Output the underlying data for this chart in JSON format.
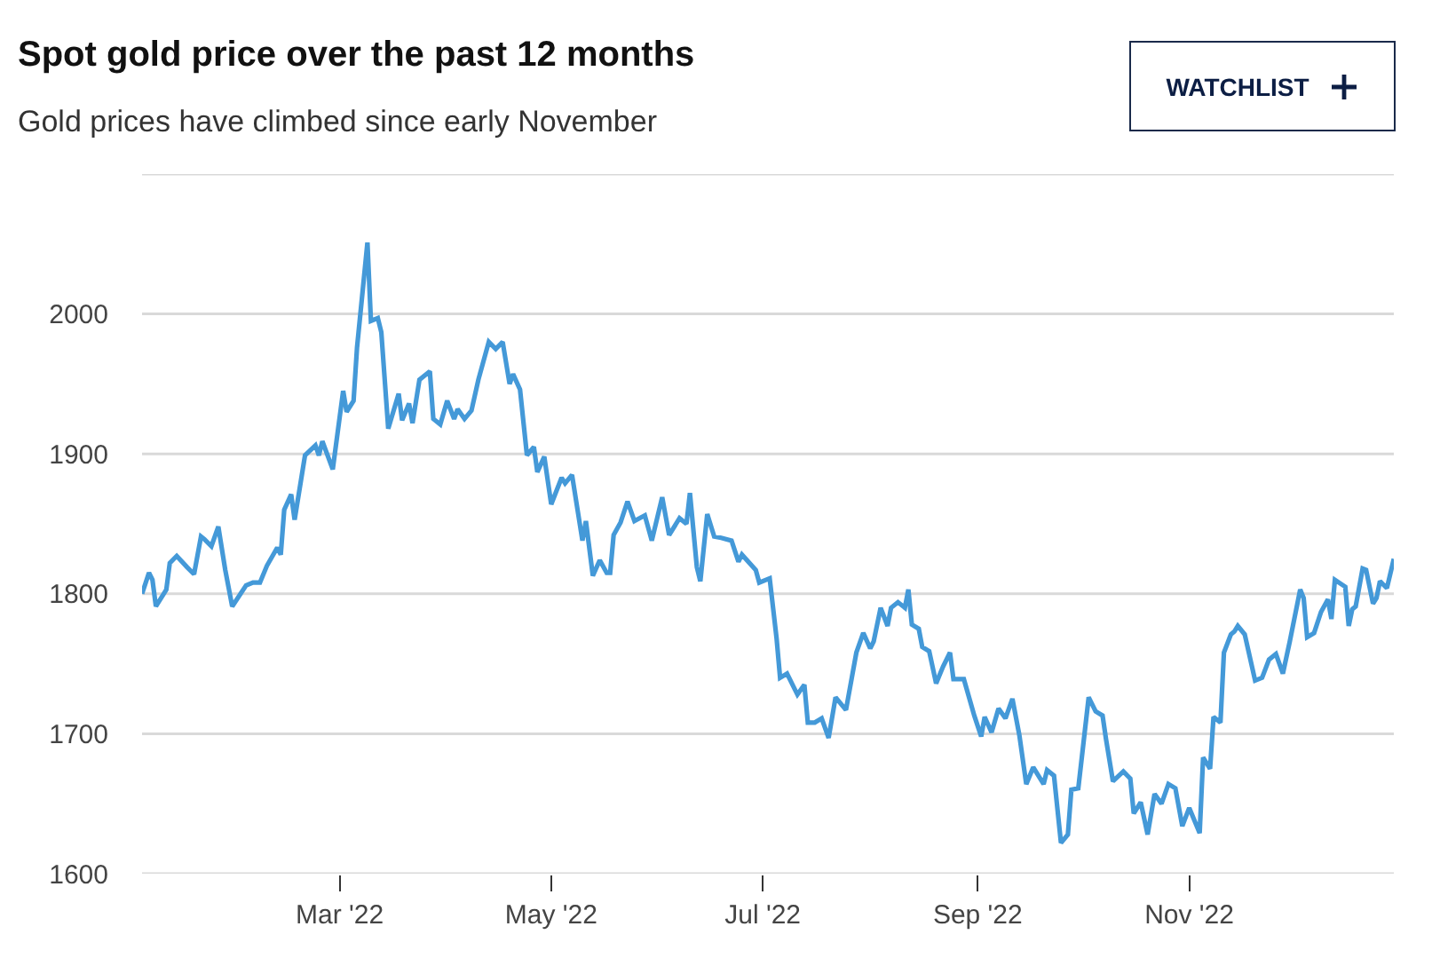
{
  "chart_data": {
    "type": "line",
    "title": "Spot gold price over the past 12 months",
    "subtitle": "Gold prices have climbed since early November",
    "annotations": [
      "WATCHLIST"
    ],
    "x": [
      "2022-01-03",
      "2022-01-05",
      "2022-01-06",
      "2022-01-07",
      "2022-01-10",
      "2022-01-11",
      "2022-01-13",
      "2022-01-16",
      "2022-01-18",
      "2022-01-20",
      "2022-01-21",
      "2022-01-23",
      "2022-01-25",
      "2022-01-27",
      "2022-01-29",
      "2022-02-02",
      "2022-02-04",
      "2022-02-06",
      "2022-02-08",
      "2022-02-11",
      "2022-02-12",
      "2022-02-13",
      "2022-02-15",
      "2022-02-16",
      "2022-02-19",
      "2022-02-22",
      "2022-02-23",
      "2022-02-24",
      "2022-02-27",
      "2022-03-02",
      "2022-03-03",
      "2022-03-05",
      "2022-03-06",
      "2022-03-09",
      "2022-03-10",
      "2022-03-12",
      "2022-03-13",
      "2022-03-15",
      "2022-03-18",
      "2022-03-19",
      "2022-03-21",
      "2022-03-22",
      "2022-03-24",
      "2022-03-27",
      "2022-03-28",
      "2022-03-30",
      "2022-04-01",
      "2022-04-03",
      "2022-04-04",
      "2022-04-06",
      "2022-04-08",
      "2022-04-10",
      "2022-04-13",
      "2022-04-15",
      "2022-04-17",
      "2022-04-19",
      "2022-04-20",
      "2022-04-22",
      "2022-04-24",
      "2022-04-26",
      "2022-04-27",
      "2022-04-29",
      "2022-05-01",
      "2022-05-04",
      "2022-05-05",
      "2022-05-07",
      "2022-05-10",
      "2022-05-11",
      "2022-05-13",
      "2022-05-15",
      "2022-05-17",
      "2022-05-18",
      "2022-05-19",
      "2022-05-21",
      "2022-05-23",
      "2022-05-25",
      "2022-05-28",
      "2022-05-30",
      "2022-06-02",
      "2022-06-04",
      "2022-06-07",
      "2022-06-09",
      "2022-06-10",
      "2022-06-12",
      "2022-06-13",
      "2022-06-15",
      "2022-06-17",
      "2022-06-19",
      "2022-06-22",
      "2022-06-24",
      "2022-06-25",
      "2022-06-29",
      "2022-06-30",
      "2022-07-03",
      "2022-07-05",
      "2022-07-06",
      "2022-07-08",
      "2022-07-11",
      "2022-07-13",
      "2022-07-14",
      "2022-07-16",
      "2022-07-18",
      "2022-07-20",
      "2022-07-22",
      "2022-07-25",
      "2022-07-28",
      "2022-07-30",
      "2022-08-01",
      "2022-08-02",
      "2022-08-04",
      "2022-08-06",
      "2022-08-07",
      "2022-08-09",
      "2022-08-11",
      "2022-08-12",
      "2022-08-13",
      "2022-08-15",
      "2022-08-16",
      "2022-08-18",
      "2022-08-20",
      "2022-08-22",
      "2022-08-24",
      "2022-08-25",
      "2022-08-28",
      "2022-08-31",
      "2022-09-02",
      "2022-09-03",
      "2022-09-05",
      "2022-09-07",
      "2022-09-09",
      "2022-09-11",
      "2022-09-13",
      "2022-09-15",
      "2022-09-17",
      "2022-09-20",
      "2022-09-21",
      "2022-09-23",
      "2022-09-25",
      "2022-09-27",
      "2022-09-28",
      "2022-09-30",
      "2022-10-03",
      "2022-10-05",
      "2022-10-07",
      "2022-10-08",
      "2022-10-10",
      "2022-10-13",
      "2022-10-15",
      "2022-10-16",
      "2022-10-18",
      "2022-10-20",
      "2022-10-22",
      "2022-10-24",
      "2022-10-26",
      "2022-10-28",
      "2022-10-30",
      "2022-11-01",
      "2022-11-04",
      "2022-11-05",
      "2022-11-07",
      "2022-11-08",
      "2022-11-10",
      "2022-11-11",
      "2022-11-13",
      "2022-11-14",
      "2022-11-15",
      "2022-11-17",
      "2022-11-20",
      "2022-11-22",
      "2022-11-24",
      "2022-11-26",
      "2022-11-28",
      "2022-11-30",
      "2022-12-03",
      "2022-12-04",
      "2022-12-05",
      "2022-12-07",
      "2022-12-09",
      "2022-12-11",
      "2022-12-12",
      "2022-12-13",
      "2022-12-16",
      "2022-12-17",
      "2022-12-18",
      "2022-12-19",
      "2022-12-21",
      "2022-12-22",
      "2022-12-24",
      "2022-12-25",
      "2022-12-26",
      "2022-12-28",
      "2022-12-30"
    ],
    "series": [
      {
        "color": "#4499d8",
        "values": [
          1800,
          1815,
          1810,
          1791,
          1803,
          1822,
          1827,
          1819,
          1814,
          1841,
          1839,
          1834,
          1848,
          1817,
          1791,
          1806,
          1808,
          1808,
          1820,
          1833,
          1828,
          1860,
          1871,
          1853,
          1899,
          1906,
          1899,
          1909,
          1889,
          1945,
          1930,
          1938,
          1976,
          2051,
          1995,
          1997,
          1987,
          1918,
          1943,
          1924,
          1936,
          1922,
          1953,
          1959,
          1925,
          1921,
          1938,
          1925,
          1932,
          1925,
          1931,
          1953,
          1980,
          1975,
          1980,
          1950,
          1957,
          1946,
          1899,
          1905,
          1887,
          1898,
          1864,
          1883,
          1879,
          1885,
          1838,
          1852,
          1813,
          1824,
          1815,
          1815,
          1842,
          1851,
          1866,
          1852,
          1856,
          1838,
          1869,
          1842,
          1854,
          1850,
          1872,
          1819,
          1809,
          1857,
          1841,
          1840,
          1838,
          1823,
          1828,
          1817,
          1808,
          1811,
          1768,
          1740,
          1743,
          1728,
          1735,
          1708,
          1708,
          1711,
          1697,
          1726,
          1717,
          1758,
          1772,
          1761,
          1766,
          1790,
          1777,
          1790,
          1794,
          1790,
          1803,
          1778,
          1775,
          1762,
          1759,
          1736,
          1748,
          1758,
          1739,
          1739,
          1713,
          1698,
          1712,
          1701,
          1718,
          1711,
          1725,
          1699,
          1664,
          1676,
          1664,
          1674,
          1670,
          1622,
          1628,
          1660,
          1661,
          1726,
          1716,
          1713,
          1696,
          1666,
          1673,
          1668,
          1643,
          1651,
          1628,
          1657,
          1650,
          1664,
          1661,
          1634,
          1647,
          1629,
          1683,
          1675,
          1712,
          1708,
          1758,
          1771,
          1773,
          1777,
          1771,
          1738,
          1740,
          1753,
          1757,
          1743,
          1766,
          1803,
          1797,
          1769,
          1772,
          1787,
          1796,
          1782,
          1810,
          1805,
          1777,
          1789,
          1791,
          1818,
          1817,
          1793,
          1797,
          1809,
          1804,
          1825
        ]
      }
    ],
    "xlim": [
      "2022-01-03",
      "2022-12-30"
    ],
    "xticks": [
      {
        "value": "2022-03-01",
        "label": "Mar '22"
      },
      {
        "value": "2022-05-01",
        "label": "May '22"
      },
      {
        "value": "2022-07-01",
        "label": "Jul '22"
      },
      {
        "value": "2022-09-01",
        "label": "Sep '22"
      },
      {
        "value": "2022-11-01",
        "label": "Nov '22"
      }
    ],
    "ylim": [
      1600,
      2100
    ],
    "yticks": [
      1600,
      1700,
      1800,
      1900,
      2000,
      {
        "value": 2100,
        "label": null
      }
    ],
    "grid": "y",
    "marker": "none",
    "line_style": "solid"
  }
}
